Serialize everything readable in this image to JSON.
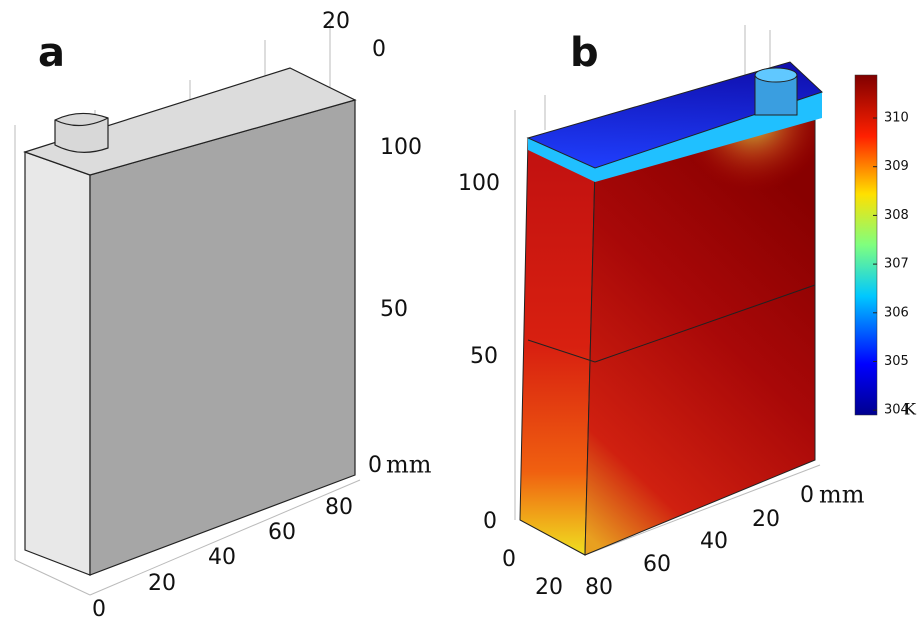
{
  "panels": [
    {
      "label": "a",
      "vertical_ticks": [
        100,
        50,
        0
      ],
      "depth_ticks": [
        20,
        0
      ],
      "width_ticks": [
        80,
        60,
        40,
        20,
        0
      ],
      "unit": "mm"
    },
    {
      "label": "b",
      "vertical_ticks": [
        100,
        50,
        0
      ],
      "depth_ticks": [
        0,
        20
      ],
      "width_ticks": [
        0,
        20,
        40,
        60,
        80
      ],
      "unit": "mm"
    }
  ],
  "colorbar": {
    "ticks": [
      310,
      309,
      308,
      307,
      306,
      305,
      304
    ],
    "unit": "K"
  }
}
